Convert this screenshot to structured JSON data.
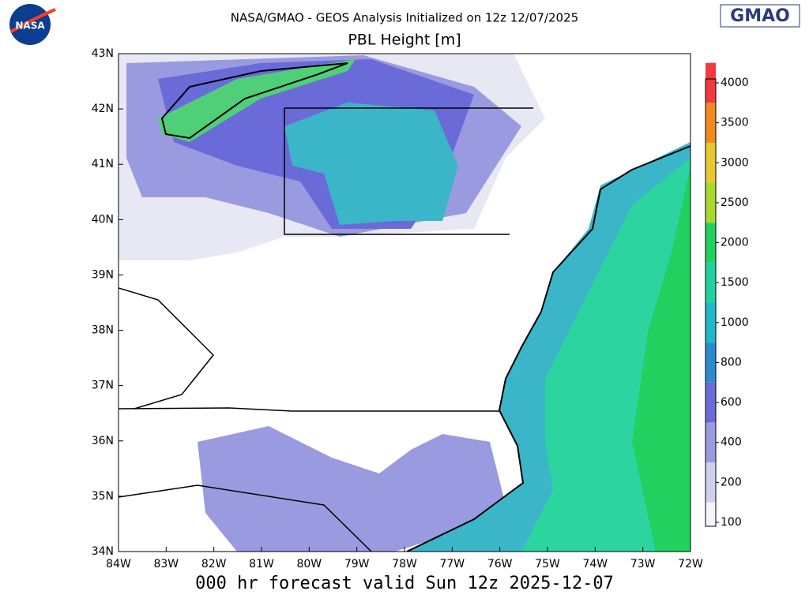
{
  "header": {
    "title": "NASA/GMAO - GEOS Analysis Initialized on 12z 12/07/2025",
    "subtitle": "PBL Height [m]",
    "logo_left": "NASA",
    "logo_right": "GMAO"
  },
  "map": {
    "lon_labels": [
      "84W",
      "83W",
      "82W",
      "81W",
      "80W",
      "79W",
      "78W",
      "77W",
      "76W",
      "75W",
      "74W",
      "73W",
      "72W"
    ],
    "lat_labels": [
      "43N",
      "42N",
      "41N",
      "40N",
      "39N",
      "38N",
      "37N",
      "36N",
      "35N",
      "34N"
    ]
  },
  "colorbar": {
    "levels": [
      100,
      200,
      400,
      600,
      800,
      1000,
      1500,
      2000,
      2500,
      3000,
      3500,
      4000
    ]
  },
  "footer": "000 hr forecast valid Sun 12z 2025-12-07"
}
